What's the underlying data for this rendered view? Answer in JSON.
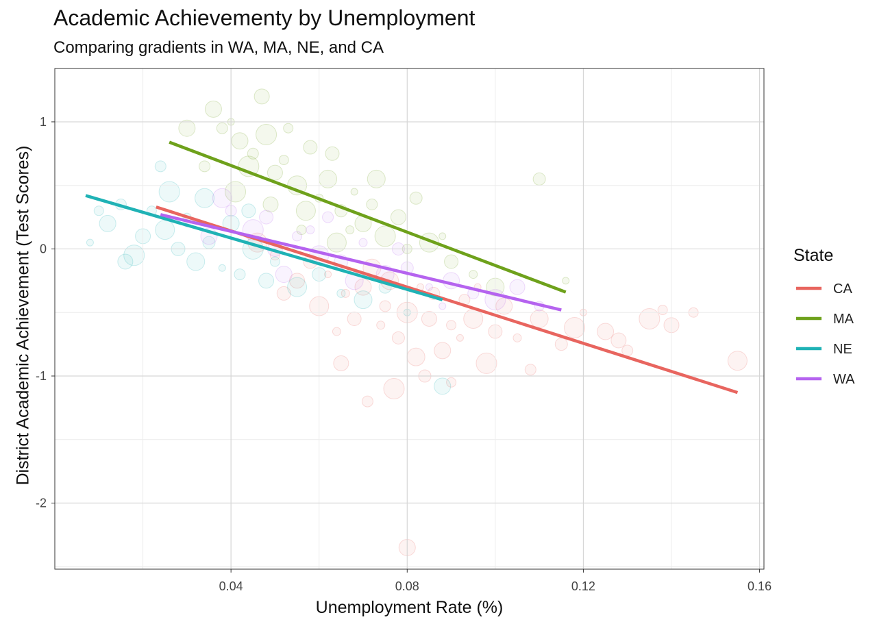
{
  "chart_data": {
    "type": "scatter",
    "title": "Academic Achievementy by Unemployment",
    "subtitle": "Comparing gradients in WA, MA, NE, and CA",
    "xlabel": "Unemployment Rate (%)",
    "ylabel": "District Academic Achievement (Test Scores)",
    "xlim": [
      0.0,
      0.161
    ],
    "ylim": [
      -2.52,
      1.42
    ],
    "x_ticks": [
      0.04,
      0.08,
      0.12,
      0.16
    ],
    "x_tick_labels": [
      "0.04",
      "0.08",
      "0.12",
      "0.16"
    ],
    "y_ticks": [
      1,
      0,
      -1,
      -2
    ],
    "y_tick_labels": [
      "1",
      "0",
      "-1",
      "-2"
    ],
    "grid": true,
    "legend": {
      "title": "State",
      "placement": "right",
      "entries": [
        "CA",
        "MA",
        "NE",
        "WA"
      ]
    },
    "colors": {
      "CA": "#E8655F",
      "MA": "#6EA11B",
      "NE": "#1FB2B5",
      "WA": "#B563EF"
    },
    "series": [
      {
        "name": "CA",
        "x": [
          0.023,
          0.155
        ],
        "y": [
          0.33,
          -1.13
        ]
      },
      {
        "name": "MA",
        "x": [
          0.026,
          0.116
        ],
        "y": [
          0.84,
          -0.34
        ]
      },
      {
        "name": "NE",
        "x": [
          0.007,
          0.088
        ],
        "y": [
          0.42,
          -0.4
        ]
      },
      {
        "name": "WA",
        "x": [
          0.024,
          0.115
        ],
        "y": [
          0.27,
          -0.48
        ]
      }
    ],
    "points_note": "",
    "scatter": {
      "CA": [
        [
          0.062,
          -0.2
        ],
        [
          0.07,
          -0.3
        ],
        [
          0.075,
          -0.45
        ],
        [
          0.08,
          -0.5
        ],
        [
          0.085,
          -0.55
        ],
        [
          0.09,
          -0.6
        ],
        [
          0.095,
          -0.55
        ],
        [
          0.1,
          -0.65
        ],
        [
          0.105,
          -0.7
        ],
        [
          0.11,
          -0.55
        ],
        [
          0.115,
          -0.75
        ],
        [
          0.12,
          -0.5
        ],
        [
          0.125,
          -0.65
        ],
        [
          0.13,
          -0.8
        ],
        [
          0.135,
          -0.55
        ],
        [
          0.14,
          -0.6
        ],
        [
          0.145,
          -0.5
        ],
        [
          0.155,
          -0.88
        ],
        [
          0.058,
          -0.1
        ],
        [
          0.066,
          -0.35
        ],
        [
          0.072,
          -0.15
        ],
        [
          0.078,
          -0.7
        ],
        [
          0.083,
          -0.3
        ],
        [
          0.088,
          -0.8
        ],
        [
          0.093,
          -0.4
        ],
        [
          0.098,
          -0.9
        ],
        [
          0.055,
          -0.25
        ],
        [
          0.05,
          -0.05
        ],
        [
          0.06,
          -0.45
        ],
        [
          0.068,
          -0.55
        ],
        [
          0.074,
          -0.6
        ],
        [
          0.082,
          -0.85
        ],
        [
          0.086,
          -0.35
        ],
        [
          0.092,
          -0.7
        ],
        [
          0.102,
          -0.45
        ],
        [
          0.108,
          -0.95
        ],
        [
          0.118,
          -0.62
        ],
        [
          0.128,
          -0.72
        ],
        [
          0.138,
          -0.48
        ],
        [
          0.046,
          0.05
        ],
        [
          0.052,
          -0.35
        ],
        [
          0.064,
          -0.65
        ],
        [
          0.076,
          -0.25
        ],
        [
          0.084,
          -1.0
        ],
        [
          0.096,
          -0.3
        ],
        [
          0.08,
          -2.35
        ],
        [
          0.071,
          -1.2
        ],
        [
          0.077,
          -1.1
        ],
        [
          0.065,
          -0.9
        ],
        [
          0.09,
          -1.05
        ]
      ],
      "MA": [
        [
          0.04,
          1.0
        ],
        [
          0.042,
          0.85
        ],
        [
          0.045,
          0.75
        ],
        [
          0.048,
          0.9
        ],
        [
          0.05,
          0.6
        ],
        [
          0.052,
          0.7
        ],
        [
          0.055,
          0.5
        ],
        [
          0.058,
          0.8
        ],
        [
          0.06,
          0.4
        ],
        [
          0.062,
          0.55
        ],
        [
          0.065,
          0.3
        ],
        [
          0.068,
          0.45
        ],
        [
          0.07,
          0.2
        ],
        [
          0.072,
          0.35
        ],
        [
          0.075,
          0.1
        ],
        [
          0.078,
          0.25
        ],
        [
          0.08,
          0.0
        ],
        [
          0.085,
          0.05
        ],
        [
          0.09,
          -0.1
        ],
        [
          0.095,
          -0.2
        ],
        [
          0.1,
          -0.3
        ],
        [
          0.11,
          0.55
        ],
        [
          0.116,
          -0.25
        ],
        [
          0.036,
          1.1
        ],
        [
          0.038,
          0.95
        ],
        [
          0.044,
          0.65
        ],
        [
          0.047,
          1.2
        ],
        [
          0.053,
          0.95
        ],
        [
          0.057,
          0.3
        ],
        [
          0.063,
          0.75
        ],
        [
          0.067,
          0.15
        ],
        [
          0.073,
          0.55
        ],
        [
          0.082,
          0.4
        ],
        [
          0.088,
          0.1
        ],
        [
          0.03,
          0.95
        ],
        [
          0.034,
          0.65
        ],
        [
          0.041,
          0.45
        ],
        [
          0.049,
          0.35
        ],
        [
          0.056,
          0.15
        ],
        [
          0.064,
          0.05
        ]
      ],
      "NE": [
        [
          0.008,
          0.05
        ],
        [
          0.012,
          0.2
        ],
        [
          0.015,
          0.35
        ],
        [
          0.018,
          -0.05
        ],
        [
          0.02,
          0.1
        ],
        [
          0.022,
          0.3
        ],
        [
          0.025,
          0.15
        ],
        [
          0.028,
          0.0
        ],
        [
          0.03,
          0.25
        ],
        [
          0.032,
          -0.1
        ],
        [
          0.035,
          0.05
        ],
        [
          0.038,
          -0.15
        ],
        [
          0.04,
          0.2
        ],
        [
          0.042,
          -0.2
        ],
        [
          0.045,
          0.0
        ],
        [
          0.048,
          -0.25
        ],
        [
          0.05,
          -0.1
        ],
        [
          0.055,
          -0.3
        ],
        [
          0.06,
          -0.2
        ],
        [
          0.065,
          -0.35
        ],
        [
          0.07,
          -0.4
        ],
        [
          0.075,
          -0.3
        ],
        [
          0.08,
          -0.5
        ],
        [
          0.088,
          -1.08
        ],
        [
          0.024,
          0.65
        ],
        [
          0.026,
          0.45
        ],
        [
          0.016,
          -0.1
        ],
        [
          0.01,
          0.3
        ],
        [
          0.034,
          0.4
        ],
        [
          0.044,
          0.3
        ]
      ],
      "WA": [
        [
          0.03,
          0.2
        ],
        [
          0.035,
          0.1
        ],
        [
          0.04,
          0.3
        ],
        [
          0.045,
          0.15
        ],
        [
          0.05,
          0.0
        ],
        [
          0.055,
          0.1
        ],
        [
          0.06,
          -0.05
        ],
        [
          0.065,
          -0.1
        ],
        [
          0.07,
          0.05
        ],
        [
          0.075,
          -0.2
        ],
        [
          0.08,
          -0.15
        ],
        [
          0.085,
          -0.3
        ],
        [
          0.09,
          -0.25
        ],
        [
          0.095,
          -0.35
        ],
        [
          0.1,
          -0.4
        ],
        [
          0.105,
          -0.3
        ],
        [
          0.11,
          -0.45
        ],
        [
          0.038,
          0.4
        ],
        [
          0.048,
          0.25
        ],
        [
          0.058,
          0.15
        ],
        [
          0.068,
          -0.25
        ],
        [
          0.078,
          0.0
        ],
        [
          0.088,
          -0.45
        ],
        [
          0.052,
          -0.2
        ],
        [
          0.062,
          0.25
        ]
      ]
    }
  }
}
